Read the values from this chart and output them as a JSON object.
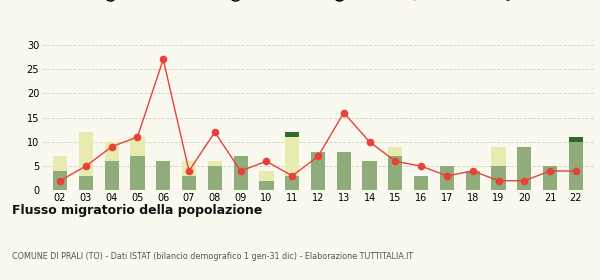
{
  "years": [
    "02",
    "03",
    "04",
    "05",
    "06",
    "07",
    "08",
    "09",
    "10",
    "11",
    "12",
    "13",
    "14",
    "15",
    "16",
    "17",
    "18",
    "19",
    "20",
    "21",
    "22"
  ],
  "iscritti_altri_comuni": [
    4,
    3,
    6,
    7,
    6,
    3,
    5,
    7,
    2,
    3,
    8,
    8,
    6,
    7,
    3,
    5,
    4,
    5,
    9,
    5,
    10
  ],
  "iscritti_estero": [
    3,
    9,
    4,
    4,
    0,
    3,
    1,
    0,
    2,
    8,
    0,
    0,
    0,
    2,
    0,
    0,
    0,
    4,
    0,
    0,
    0
  ],
  "iscritti_altri": [
    0,
    0,
    0,
    0,
    0,
    0,
    0,
    0,
    0,
    1,
    0,
    0,
    0,
    0,
    0,
    0,
    0,
    0,
    0,
    0,
    1
  ],
  "cancellati": [
    2,
    5,
    9,
    11,
    27,
    4,
    12,
    4,
    6,
    3,
    7,
    16,
    10,
    6,
    5,
    3,
    4,
    2,
    2,
    4,
    4
  ],
  "color_altri_comuni": "#8fac7a",
  "color_estero": "#e8ebb0",
  "color_altri": "#2d6a2d",
  "color_cancellati": "#e8413c",
  "ylim": [
    0,
    30
  ],
  "yticks": [
    0,
    5,
    10,
    15,
    20,
    25,
    30
  ],
  "title": "Flusso migratorio della popolazione",
  "subtitle": "COMUNE DI PRALI (TO) - Dati ISTAT (bilancio demografico 1 gen-31 dic) - Elaborazione TUTTITALIA.IT",
  "background_color": "#f9f9f0",
  "grid_color": "#d0d0c0"
}
